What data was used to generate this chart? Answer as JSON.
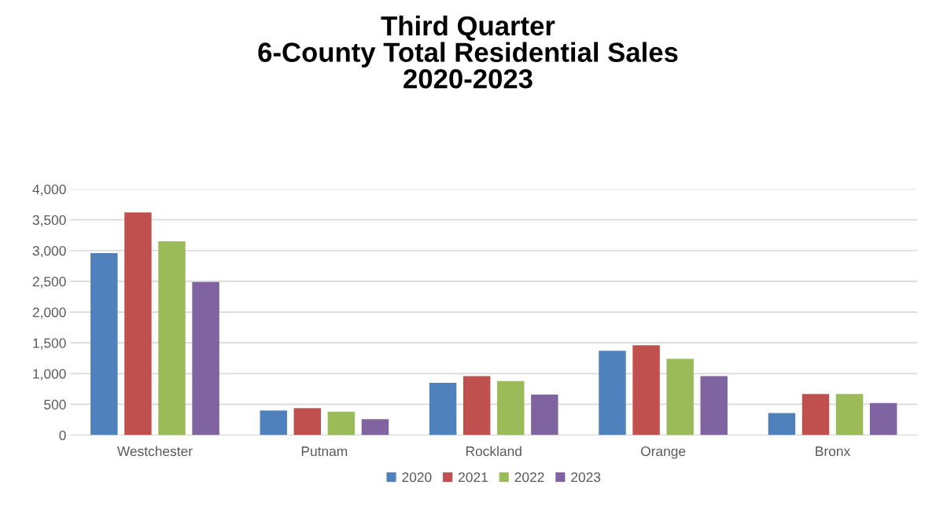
{
  "chart_data": {
    "type": "bar",
    "title": "Third Quarter\n6-County Total Residential Sales\n2020-2023",
    "categories": [
      "Westchester",
      "Putnam",
      "Rockland",
      "Orange",
      "Bronx"
    ],
    "series": [
      {
        "name": "2020",
        "color": "#4f81bd",
        "values": [
          2960,
          400,
          850,
          1370,
          360
        ]
      },
      {
        "name": "2021",
        "color": "#c0504d",
        "values": [
          3620,
          440,
          960,
          1460,
          670
        ]
      },
      {
        "name": "2022",
        "color": "#9bbb59",
        "values": [
          3150,
          380,
          880,
          1240,
          670
        ]
      },
      {
        "name": "2023",
        "color": "#8064a2",
        "values": [
          2490,
          260,
          660,
          960,
          520
        ]
      }
    ],
    "ylim": [
      0,
      4000
    ],
    "yticks": [
      {
        "value": 0,
        "label": "0"
      },
      {
        "value": 500,
        "label": "500"
      },
      {
        "value": 1000,
        "label": "1,000"
      },
      {
        "value": 1500,
        "label": "1,500"
      },
      {
        "value": 2000,
        "label": "2,000"
      },
      {
        "value": 2500,
        "label": "2,500"
      },
      {
        "value": 3000,
        "label": "3,000"
      },
      {
        "value": 3500,
        "label": "3,500"
      },
      {
        "value": 4000,
        "label": "4,000"
      }
    ],
    "grid": "y",
    "legend": "bottom"
  }
}
